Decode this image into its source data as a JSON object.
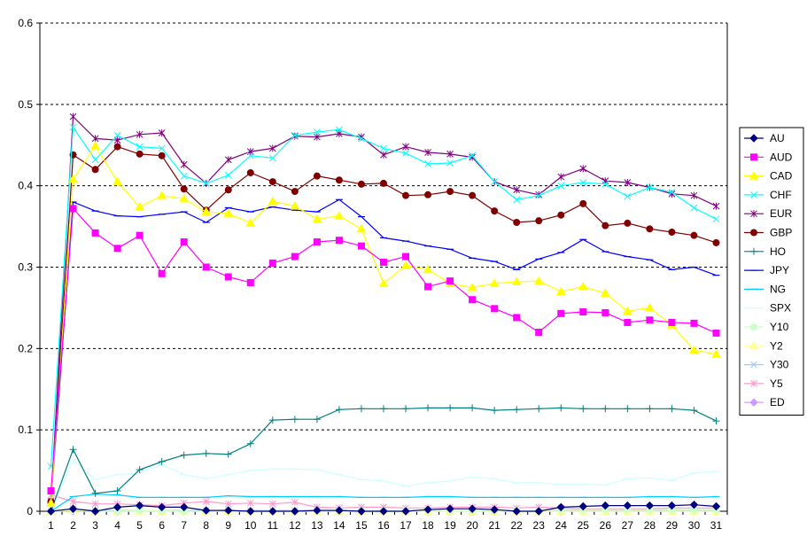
{
  "chart_data": {
    "type": "line",
    "title": "",
    "xlabel": "",
    "ylabel": "",
    "x": [
      1,
      2,
      3,
      4,
      5,
      6,
      7,
      8,
      9,
      10,
      11,
      12,
      13,
      14,
      15,
      16,
      17,
      18,
      19,
      20,
      21,
      22,
      23,
      24,
      25,
      26,
      27,
      28,
      29,
      30,
      31
    ],
    "ylim": [
      0,
      0.6
    ],
    "y_ticks": [
      "0",
      "0.1",
      "0.2",
      "0.3",
      "0.4",
      "0.5",
      "0.6"
    ],
    "grid": "horizontal dashed",
    "legend_position": "right",
    "series": [
      {
        "name": "AU",
        "color": "#000080",
        "marker": "diamond",
        "values": [
          0.0,
          0.003,
          0.0,
          0.005,
          0.007,
          0.005,
          0.005,
          0.001,
          0.001,
          0.0,
          0.0,
          0.0,
          0.001,
          0.001,
          0.0,
          0.0,
          0.0,
          0.002,
          0.003,
          0.003,
          0.002,
          0.0,
          0.0,
          0.005,
          0.006,
          0.007,
          0.007,
          0.007,
          0.007,
          0.008,
          0.006
        ]
      },
      {
        "name": "AUD",
        "color": "#FF00FF",
        "marker": "square",
        "values": [
          0.025,
          0.372,
          0.342,
          0.323,
          0.339,
          0.292,
          0.331,
          0.3,
          0.288,
          0.281,
          0.305,
          0.313,
          0.331,
          0.333,
          0.326,
          0.306,
          0.313,
          0.276,
          0.283,
          0.26,
          0.249,
          0.238,
          0.22,
          0.243,
          0.245,
          0.244,
          0.232,
          0.235,
          0.232,
          0.231,
          0.219
        ]
      },
      {
        "name": "CAD",
        "color": "#FFFF00",
        "marker": "triangle",
        "values": [
          0.01,
          0.408,
          0.449,
          0.405,
          0.374,
          0.388,
          0.384,
          0.368,
          0.366,
          0.354,
          0.381,
          0.375,
          0.359,
          0.363,
          0.347,
          0.28,
          0.302,
          0.297,
          0.28,
          0.275,
          0.28,
          0.282,
          0.283,
          0.27,
          0.276,
          0.268,
          0.246,
          0.25,
          0.229,
          0.198,
          0.193
        ]
      },
      {
        "name": "CHF",
        "color": "#00FFFF",
        "marker": "x",
        "values": [
          0.055,
          0.472,
          0.432,
          0.462,
          0.448,
          0.446,
          0.412,
          0.403,
          0.413,
          0.437,
          0.434,
          0.462,
          0.466,
          0.469,
          0.458,
          0.446,
          0.44,
          0.427,
          0.428,
          0.437,
          0.405,
          0.383,
          0.388,
          0.4,
          0.404,
          0.402,
          0.387,
          0.398,
          0.392,
          0.373,
          0.359
        ]
      },
      {
        "name": "EUR",
        "color": "#800080",
        "marker": "star",
        "values": [
          0.012,
          0.485,
          0.458,
          0.456,
          0.463,
          0.465,
          0.426,
          0.403,
          0.432,
          0.442,
          0.446,
          0.461,
          0.46,
          0.464,
          0.46,
          0.438,
          0.448,
          0.441,
          0.439,
          0.435,
          0.405,
          0.395,
          0.389,
          0.411,
          0.421,
          0.406,
          0.404,
          0.398,
          0.39,
          0.388,
          0.375
        ]
      },
      {
        "name": "GBP",
        "color": "#800000",
        "marker": "circle",
        "values": [
          0.012,
          0.438,
          0.42,
          0.448,
          0.439,
          0.437,
          0.396,
          0.37,
          0.395,
          0.416,
          0.405,
          0.393,
          0.412,
          0.407,
          0.402,
          0.403,
          0.388,
          0.389,
          0.393,
          0.388,
          0.369,
          0.355,
          0.357,
          0.364,
          0.378,
          0.351,
          0.354,
          0.347,
          0.343,
          0.339,
          0.33
        ]
      },
      {
        "name": "HO",
        "color": "#008080",
        "marker": "plus",
        "values": [
          0.0,
          0.076,
          0.022,
          0.025,
          0.051,
          0.061,
          0.069,
          0.071,
          0.07,
          0.083,
          0.112,
          0.113,
          0.113,
          0.125,
          0.126,
          0.126,
          0.126,
          0.127,
          0.127,
          0.127,
          0.124,
          0.125,
          0.126,
          0.127,
          0.126,
          0.126,
          0.126,
          0.126,
          0.126,
          0.124,
          0.111
        ]
      },
      {
        "name": "JPY",
        "color": "#0000FF",
        "marker": "dash",
        "values": [
          0.01,
          0.38,
          0.369,
          0.363,
          0.362,
          0.365,
          0.368,
          0.355,
          0.373,
          0.368,
          0.374,
          0.37,
          0.368,
          0.383,
          0.362,
          0.336,
          0.332,
          0.326,
          0.322,
          0.311,
          0.307,
          0.297,
          0.31,
          0.318,
          0.334,
          0.319,
          0.313,
          0.309,
          0.297,
          0.3,
          0.29
        ]
      },
      {
        "name": "NG",
        "color": "#00CCFF",
        "marker": "dash",
        "values": [
          0.0,
          0.018,
          0.021,
          0.02,
          0.017,
          0.017,
          0.017,
          0.017,
          0.019,
          0.018,
          0.018,
          0.018,
          0.018,
          0.018,
          0.017,
          0.017,
          0.017,
          0.018,
          0.018,
          0.017,
          0.017,
          0.017,
          0.017,
          0.017,
          0.017,
          0.017,
          0.017,
          0.018,
          0.018,
          0.017,
          0.018
        ]
      },
      {
        "name": "SPX",
        "color": "#CCFFFF",
        "marker": "dash",
        "values": [
          0.0,
          0.063,
          0.039,
          0.045,
          0.047,
          0.057,
          0.045,
          0.04,
          0.045,
          0.05,
          0.052,
          0.052,
          0.051,
          0.045,
          0.039,
          0.037,
          0.031,
          0.035,
          0.037,
          0.042,
          0.04,
          0.035,
          0.035,
          0.033,
          0.033,
          0.032,
          0.04,
          0.041,
          0.038,
          0.047,
          0.049
        ]
      },
      {
        "name": "Y10",
        "color": "#CCFFCC",
        "marker": "circle",
        "values": [
          0.0,
          0.002,
          0.0,
          0.0,
          0.001,
          0.001,
          0.0,
          0.0,
          0.002,
          0.0,
          0.0,
          0.0,
          0.0,
          0.001,
          0.001,
          0.001,
          0.001,
          0.002,
          0.001,
          0.001,
          0.001,
          0.001,
          0.001,
          0.002,
          0.002,
          0.002,
          0.002,
          0.002,
          0.002,
          0.002,
          0.002
        ]
      },
      {
        "name": "Y2",
        "color": "#FFFF99",
        "marker": "triangle",
        "values": [
          0.0,
          0.001,
          0.0,
          0.0,
          0.0,
          0.0,
          0.0,
          0.0,
          0.0,
          0.0,
          0.0,
          0.0,
          0.0,
          0.0,
          0.0,
          0.0,
          0.0,
          0.0,
          0.0,
          0.0,
          0.0,
          0.0,
          0.0,
          0.0,
          0.0,
          0.0,
          0.0,
          0.0,
          0.0,
          0.0,
          0.0
        ]
      },
      {
        "name": "Y30",
        "color": "#99CCFF",
        "marker": "x",
        "values": [
          0.0,
          0.003,
          0.001,
          0.001,
          0.001,
          0.001,
          0.001,
          0.001,
          0.001,
          0.001,
          0.001,
          0.001,
          0.001,
          0.001,
          0.001,
          0.001,
          0.001,
          0.001,
          0.001,
          0.001,
          0.001,
          0.001,
          0.001,
          0.001,
          0.001,
          0.001,
          0.001,
          0.001,
          0.001,
          0.001,
          0.001
        ]
      },
      {
        "name": "Y5",
        "color": "#FF99CC",
        "marker": "star",
        "values": [
          0.02,
          0.012,
          0.009,
          0.009,
          0.008,
          0.007,
          0.01,
          0.012,
          0.009,
          0.01,
          0.009,
          0.011,
          0.005,
          0.004,
          0.005,
          0.005,
          0.004,
          0.004,
          0.005,
          0.005,
          0.005,
          0.004,
          0.005,
          0.004,
          0.003,
          0.003,
          0.003,
          0.003,
          0.004,
          0.004,
          0.004
        ]
      },
      {
        "name": "ED",
        "color": "#CC99FF",
        "marker": "diamond",
        "values": [
          0.0,
          0.0,
          0.0,
          0.0,
          0.0,
          0.0,
          0.0,
          0.0,
          0.0,
          0.0,
          0.0,
          0.0,
          0.0,
          0.0,
          0.0,
          0.0,
          0.0,
          0.0,
          0.0,
          0.0,
          0.0,
          0.0,
          0.0,
          0.0,
          0.0,
          0.0,
          0.0,
          0.0,
          0.0,
          0.0,
          0.0
        ]
      }
    ]
  }
}
